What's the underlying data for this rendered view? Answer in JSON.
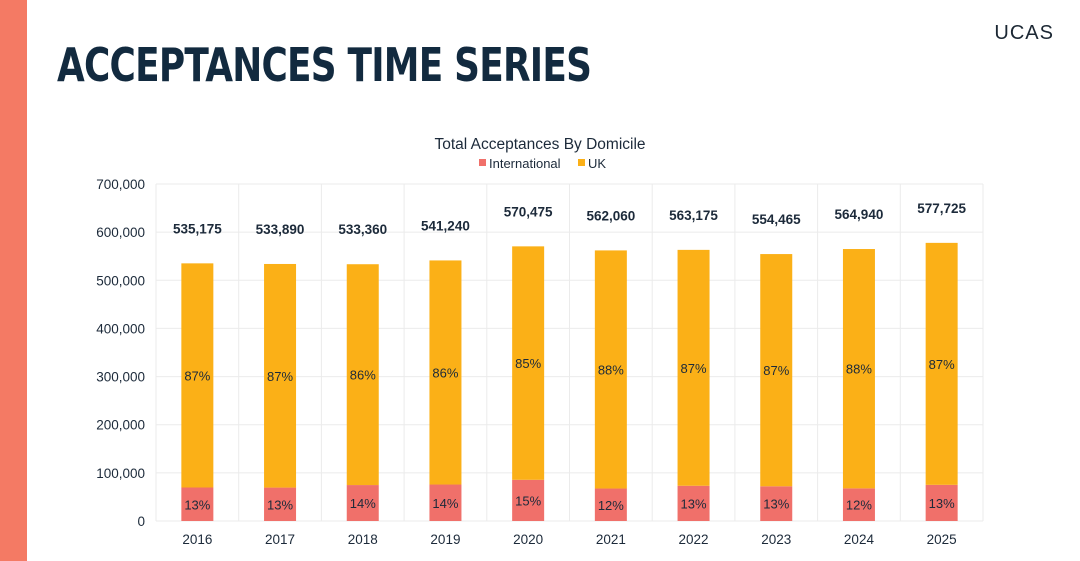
{
  "page": {
    "title": "ACCEPTANCES TIME SERIES",
    "logo": "UCAS"
  },
  "colors": {
    "accent": "#f47a64",
    "international": "#f0706a",
    "uk": "#fbb017",
    "grid": "#ebebeb",
    "text": "#1c2a3a"
  },
  "chart_data": {
    "type": "bar",
    "stacked": true,
    "title": "Total Acceptances By Domicile",
    "xlabel": "",
    "ylabel": "",
    "ylim": [
      0,
      700000
    ],
    "yticks": [
      0,
      100000,
      200000,
      300000,
      400000,
      500000,
      600000,
      700000
    ],
    "ytick_labels": [
      "0",
      "100,000",
      "200,000",
      "300,000",
      "400,000",
      "500,000",
      "600,000",
      "700,000"
    ],
    "legend_position": "top-center",
    "grid": true,
    "categories": [
      "2016",
      "2017",
      "2018",
      "2019",
      "2020",
      "2021",
      "2022",
      "2023",
      "2024",
      "2025"
    ],
    "totals": [
      535175,
      533890,
      533360,
      541240,
      570475,
      562060,
      563175,
      554465,
      564940,
      577725
    ],
    "total_labels": [
      "535,175",
      "533,890",
      "533,360",
      "541,240",
      "570,475",
      "562,060",
      "563,175",
      "554,465",
      "564,940",
      "577,725"
    ],
    "series": [
      {
        "name": "International",
        "color": "#f0706a",
        "values": [
          69573,
          69406,
          74670,
          75774,
          85571,
          67447,
          73213,
          72080,
          67793,
          75104
        ],
        "pct_labels": [
          "13%",
          "13%",
          "14%",
          "14%",
          "15%",
          "12%",
          "13%",
          "13%",
          "12%",
          "13%"
        ]
      },
      {
        "name": "UK",
        "color": "#fbb017",
        "values": [
          465602,
          464484,
          458690,
          465466,
          484904,
          494613,
          489962,
          482385,
          497147,
          502621
        ],
        "pct_labels": [
          "87%",
          "87%",
          "86%",
          "86%",
          "85%",
          "88%",
          "87%",
          "87%",
          "88%",
          "87%"
        ]
      }
    ]
  }
}
